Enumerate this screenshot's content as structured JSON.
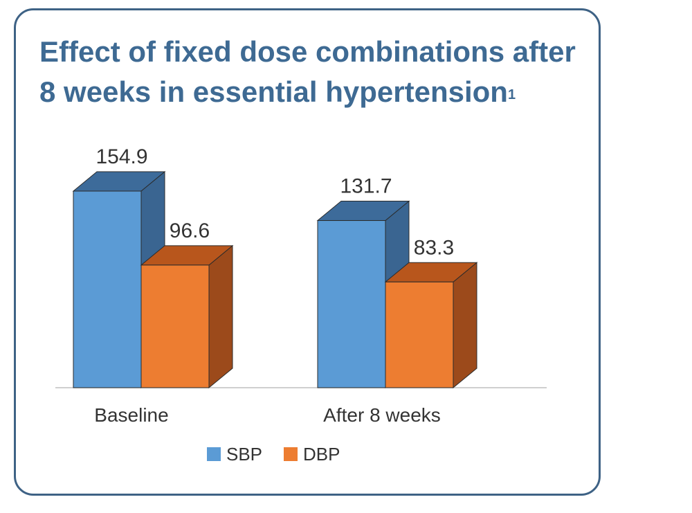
{
  "title": "Effect of fixed dose combinations after 8 weeks in essential hypertension",
  "title_superscript": "1",
  "chart_data": {
    "type": "bar",
    "categories": [
      "Baseline",
      "After 8 weeks"
    ],
    "series": [
      {
        "name": "SBP",
        "values": [
          154.9,
          131.7
        ],
        "color": "#5b9bd5",
        "top_color": "#3d6b9a",
        "side_color": "#3a6591"
      },
      {
        "name": "DBP",
        "values": [
          96.6,
          83.3
        ],
        "color": "#ed7d31",
        "top_color": "#b8561c",
        "side_color": "#9c4a1b"
      }
    ],
    "title": "Effect of fixed dose combinations after 8 weeks in essential hypertension",
    "xlabel": "",
    "ylabel": "",
    "ylim": [
      0,
      180
    ],
    "grid": false,
    "legend": "bottom"
  }
}
